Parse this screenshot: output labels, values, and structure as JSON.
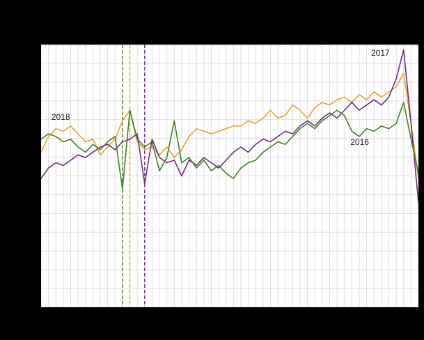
{
  "canvas": {
    "background": "#000000",
    "plot_background": "#ffffff",
    "label_color": "#1a1a1a"
  },
  "chart_data": {
    "type": "line",
    "x_unit": "week",
    "x_range": [
      1,
      52
    ],
    "ylim": [
      0,
      100
    ],
    "grid": {
      "vertical": "every-week",
      "horizontal_divisions": 14,
      "color": "#dedede"
    },
    "series": [
      {
        "name": "2018",
        "color": "#e8a227",
        "values": [
          59,
          65,
          68,
          67,
          69,
          66,
          63,
          64,
          58,
          61,
          64,
          71,
          75,
          63,
          60,
          61,
          58,
          61,
          57,
          60,
          65,
          68,
          67,
          66,
          67,
          68,
          69,
          69,
          71,
          70,
          72,
          75,
          72,
          73,
          77,
          75,
          72,
          76,
          78,
          77,
          79,
          80,
          78,
          81,
          79,
          82,
          80,
          82,
          84,
          89,
          70,
          49
        ]
      },
      {
        "name": "2017",
        "color": "#6e2a85",
        "values": [
          49,
          53,
          55,
          54,
          56,
          58,
          57,
          59,
          61,
          62,
          60,
          63,
          64,
          66,
          47,
          64,
          57,
          55,
          56,
          50,
          56,
          54,
          57,
          55,
          53,
          56,
          59,
          61,
          59,
          62,
          64,
          63,
          65,
          67,
          66,
          69,
          71,
          69,
          72,
          74,
          72,
          75,
          78,
          75,
          77,
          79,
          77,
          80,
          87,
          98,
          70,
          40
        ]
      },
      {
        "name": "2016",
        "color": "#41801f",
        "values": [
          64,
          66,
          65,
          63,
          64,
          61,
          59,
          62,
          60,
          63,
          65,
          45,
          75,
          64,
          61,
          63,
          52,
          57,
          71,
          55,
          57,
          53,
          56,
          52,
          54,
          51,
          49,
          53,
          55,
          56,
          59,
          61,
          63,
          62,
          65,
          68,
          70,
          68,
          71,
          73,
          75,
          73,
          67,
          65,
          68,
          67,
          69,
          68,
          70,
          78,
          64,
          51
        ]
      }
    ],
    "event_markers": [
      {
        "series": "2016",
        "week": 12,
        "color": "#41801f"
      },
      {
        "series": "2018",
        "week": 13,
        "color": "#e8a227"
      },
      {
        "series": "2017",
        "week": 15,
        "color": "#6e2a85"
      }
    ],
    "annotations": [
      {
        "text": "2018",
        "week": 2.4,
        "value": 71.5
      },
      {
        "text": "2017",
        "week": 45.6,
        "value": 96
      },
      {
        "text": "2016",
        "week": 42.8,
        "value": 62
      }
    ]
  }
}
